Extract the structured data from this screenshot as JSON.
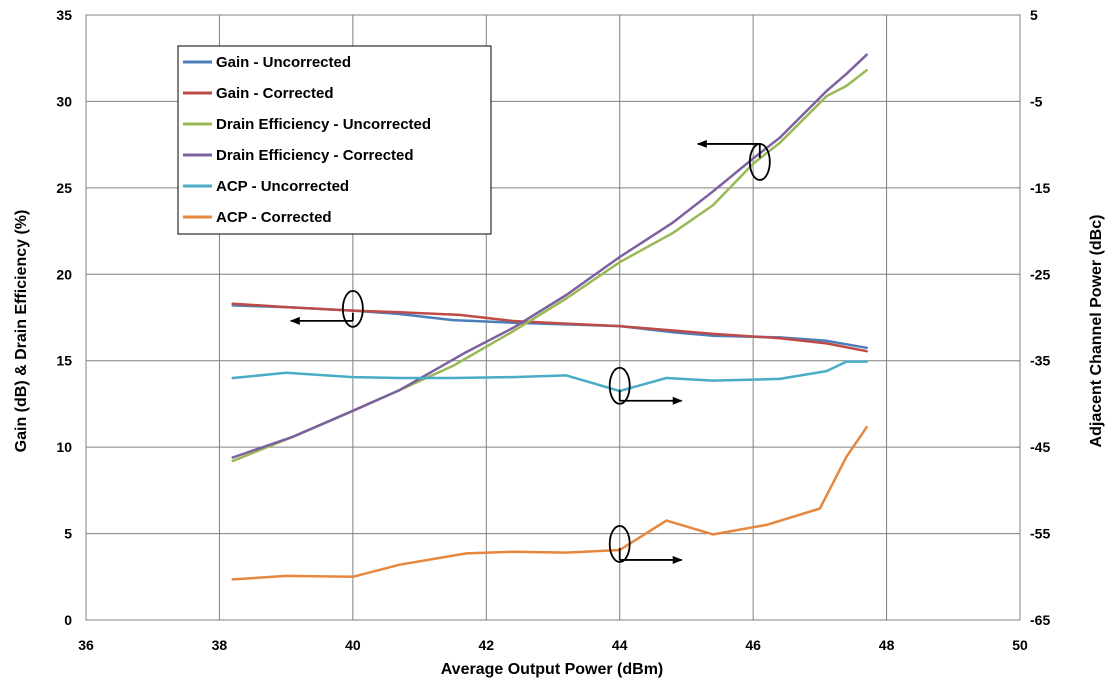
{
  "chart_data": {
    "type": "line",
    "xlabel": "Average Output Power (dBm)",
    "ylabel_left": "Gain (dB) & Drain Efficiency (%)",
    "ylabel_right": "Adjacent Channel Power (dBc)",
    "xlim": [
      36,
      50
    ],
    "ylim_left": [
      0,
      35
    ],
    "ylim_right": [
      -65,
      5
    ],
    "x_ticks": [
      "36",
      "38",
      "40",
      "42",
      "44",
      "46",
      "48",
      "50"
    ],
    "y_left_ticks": [
      "0",
      "5",
      "10",
      "15",
      "20",
      "25",
      "30",
      "35"
    ],
    "y_right_ticks": [
      "-65",
      "-55",
      "-45",
      "-35",
      "-25",
      "-15",
      "-5",
      "5"
    ],
    "grid": true,
    "legend_position": "top-left",
    "series": [
      {
        "name": "Gain - Uncorrected",
        "axis": "left",
        "color": "#4a7ebb",
        "points": [
          [
            38.2,
            18.2
          ],
          [
            39.0,
            18.1
          ],
          [
            40.0,
            17.9
          ],
          [
            40.7,
            17.7
          ],
          [
            41.5,
            17.35
          ],
          [
            42.4,
            17.2
          ],
          [
            43.2,
            17.1
          ],
          [
            44.0,
            17.0
          ],
          [
            44.8,
            16.65
          ],
          [
            45.4,
            16.45
          ],
          [
            46.4,
            16.35
          ],
          [
            47.1,
            16.15
          ],
          [
            47.7,
            15.75
          ]
        ]
      },
      {
        "name": "Gain - Corrected",
        "axis": "left",
        "color": "#be4b48",
        "points": [
          [
            38.2,
            18.3
          ],
          [
            39.0,
            18.1
          ],
          [
            40.0,
            17.9
          ],
          [
            40.7,
            17.8
          ],
          [
            41.6,
            17.65
          ],
          [
            42.4,
            17.3
          ],
          [
            43.2,
            17.15
          ],
          [
            44.0,
            17.0
          ],
          [
            44.8,
            16.75
          ],
          [
            45.4,
            16.55
          ],
          [
            46.4,
            16.3
          ],
          [
            47.1,
            16.0
          ],
          [
            47.7,
            15.55
          ]
        ]
      },
      {
        "name": "Drain Efficiency - Uncorrected",
        "axis": "left",
        "color": "#98b954",
        "points": [
          [
            38.2,
            9.2
          ],
          [
            39.1,
            10.6
          ],
          [
            40.0,
            12.1
          ],
          [
            40.7,
            13.3
          ],
          [
            41.5,
            14.7
          ],
          [
            42.4,
            16.7
          ],
          [
            43.2,
            18.6
          ],
          [
            44.0,
            20.7
          ],
          [
            44.8,
            22.4
          ],
          [
            45.4,
            24.0
          ],
          [
            46.0,
            26.4
          ],
          [
            46.4,
            27.6
          ],
          [
            47.1,
            30.3
          ],
          [
            47.4,
            30.9
          ],
          [
            47.7,
            31.8
          ]
        ]
      },
      {
        "name": "Drain Efficiency - Corrected",
        "axis": "left",
        "color": "#7d60a0",
        "points": [
          [
            38.2,
            9.4
          ],
          [
            39.1,
            10.6
          ],
          [
            40.0,
            12.1
          ],
          [
            40.7,
            13.3
          ],
          [
            41.7,
            15.5
          ],
          [
            42.4,
            16.9
          ],
          [
            43.2,
            18.8
          ],
          [
            44.0,
            21.0
          ],
          [
            44.8,
            23.0
          ],
          [
            45.4,
            24.8
          ],
          [
            46.0,
            26.7
          ],
          [
            46.4,
            27.9
          ],
          [
            47.1,
            30.6
          ],
          [
            47.4,
            31.6
          ],
          [
            47.7,
            32.7
          ]
        ]
      },
      {
        "name": "ACP - Uncorrected",
        "axis": "right",
        "color": "#4aacc6",
        "points": [
          [
            38.2,
            -37.0
          ],
          [
            39.0,
            -36.4
          ],
          [
            40.0,
            -36.9
          ],
          [
            40.7,
            -37.0
          ],
          [
            41.5,
            -37.0
          ],
          [
            42.4,
            -36.9
          ],
          [
            43.2,
            -36.7
          ],
          [
            44.0,
            -38.5
          ],
          [
            44.7,
            -37.0
          ],
          [
            45.4,
            -37.3
          ],
          [
            46.4,
            -37.1
          ],
          [
            47.1,
            -36.2
          ],
          [
            47.4,
            -35.1
          ],
          [
            47.7,
            -35.1
          ]
        ]
      },
      {
        "name": "ACP - Corrected",
        "axis": "right",
        "color": "#e7873e",
        "points": [
          [
            38.2,
            -60.3
          ],
          [
            39.0,
            -59.9
          ],
          [
            40.0,
            -60.0
          ],
          [
            40.7,
            -58.6
          ],
          [
            41.7,
            -57.3
          ],
          [
            42.4,
            -57.1
          ],
          [
            43.2,
            -57.2
          ],
          [
            44.0,
            -56.9
          ],
          [
            44.7,
            -53.5
          ],
          [
            45.4,
            -55.1
          ],
          [
            46.2,
            -54.0
          ],
          [
            47.0,
            -52.1
          ],
          [
            47.4,
            -46.1
          ],
          [
            47.7,
            -42.7
          ]
        ]
      }
    ]
  }
}
